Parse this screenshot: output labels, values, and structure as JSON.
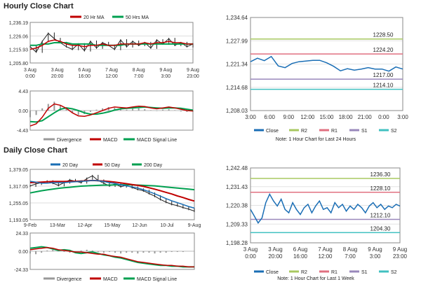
{
  "hourly": {
    "title": "Hourly Close Chart",
    "price_chart": {
      "type": "line",
      "legend": [
        "20 Hr MA",
        "50 Hrs MA"
      ],
      "y_ticks": [
        "1,236.19",
        "1,226.06",
        "1,215.93",
        "1,205.80"
      ],
      "ylim": [
        1205.8,
        1236.19
      ],
      "x_ticks": [
        [
          "3 Aug",
          "0:00"
        ],
        [
          "3 Aug",
          "20:00"
        ],
        [
          "6 Aug",
          "16:00"
        ],
        [
          "7 Aug",
          "12:00"
        ],
        [
          "8 Aug",
          "7:00"
        ],
        [
          "9 Aug",
          "3:00"
        ],
        [
          "9 Aug",
          "23:00"
        ]
      ],
      "close": [
        1218,
        1214,
        1222,
        1228,
        1224,
        1221,
        1218,
        1216,
        1220,
        1215,
        1222,
        1217,
        1221,
        1219,
        1216,
        1223,
        1218,
        1222,
        1219,
        1221,
        1217,
        1223,
        1220,
        1224,
        1219,
        1221,
        1218,
        1220
      ],
      "ma20": [
        1216,
        1217,
        1219,
        1222,
        1223,
        1222,
        1220,
        1219,
        1219,
        1218,
        1219,
        1219,
        1220,
        1219,
        1219,
        1220,
        1220,
        1220,
        1220,
        1221,
        1220,
        1221,
        1221,
        1222,
        1221,
        1221,
        1220,
        1220
      ],
      "ma50": [
        1219,
        1219,
        1220,
        1220,
        1221,
        1221,
        1221,
        1220,
        1220,
        1220,
        1220,
        1219,
        1219,
        1219,
        1219,
        1219,
        1220,
        1220,
        1220,
        1220,
        1220,
        1220,
        1220,
        1220,
        1220,
        1220,
        1220,
        1220
      ],
      "colors": {
        "ma20": "#c00000",
        "ma50": "#00a050",
        "price": "#222222"
      }
    },
    "macd_chart": {
      "type": "line",
      "y_ticks": [
        "4.43",
        "0.00",
        "-4.43"
      ],
      "ylim": [
        -4.43,
        4.43
      ],
      "legend": [
        "Divergence",
        "MACD",
        "MACD Signal Line"
      ],
      "divergence": [
        -1.5,
        -1.0,
        0.5,
        1.5,
        2.0,
        1.2,
        0.5,
        -0.5,
        -1.0,
        -0.8,
        -0.3,
        0.2,
        0.5,
        0.8,
        0.6,
        0.3,
        0.2,
        0.4,
        0.5,
        0.3,
        0.1,
        -0.1,
        0.2,
        0.3,
        0.1,
        -0.2,
        -0.3,
        -0.2
      ],
      "macd": [
        -3.5,
        -3.0,
        -1.5,
        0.5,
        1.5,
        1.2,
        0.5,
        -0.5,
        -1.2,
        -1.3,
        -1.0,
        -0.5,
        0.0,
        0.5,
        0.8,
        0.7,
        0.6,
        0.8,
        1.0,
        0.9,
        0.6,
        0.4,
        0.6,
        0.8,
        0.6,
        0.3,
        0.0,
        -0.1
      ],
      "signal": [
        -2.5,
        -2.6,
        -2.3,
        -1.4,
        -0.5,
        0.3,
        0.6,
        0.4,
        0.0,
        -0.5,
        -0.8,
        -0.8,
        -0.6,
        -0.3,
        0.1,
        0.4,
        0.5,
        0.6,
        0.7,
        0.8,
        0.7,
        0.6,
        0.5,
        0.6,
        0.6,
        0.5,
        0.3,
        0.1
      ],
      "colors": {
        "divergence": "#999999",
        "macd": "#c00000",
        "signal": "#00a050"
      }
    },
    "pivot_chart": {
      "type": "line",
      "y_ticks": [
        "1,234.64",
        "1,227.99",
        "1,221.34",
        "1,214.68",
        "1,208.03"
      ],
      "ylim": [
        1208.03,
        1234.64
      ],
      "x_ticks": [
        "3:00",
        "6:00",
        "9:00",
        "12:00",
        "15:00",
        "18:00",
        "21:00",
        "0:00",
        "3:00"
      ],
      "close": [
        1222.0,
        1223.0,
        1222.3,
        1223.5,
        1220.8,
        1220.3,
        1221.5,
        1222.0,
        1222.2,
        1222.4,
        1222.4,
        1221.7,
        1220.7,
        1219.4,
        1220.0,
        1219.6,
        1219.9,
        1220.3,
        1219.9,
        1219.9,
        1219.3,
        1220.5,
        1219.9
      ],
      "levels": [
        {
          "name": "R2",
          "value": 1228.5,
          "label": "1228.50",
          "color": "#a8c860"
        },
        {
          "name": "R1",
          "value": 1224.2,
          "label": "1224.20",
          "color": "#e07080"
        },
        {
          "name": "S1",
          "value": 1217.0,
          "label": "1217.00",
          "color": "#9988bb"
        },
        {
          "name": "S2",
          "value": 1214.1,
          "label": "1214.10",
          "color": "#40c0c0"
        }
      ],
      "legend": [
        "Close",
        "R2",
        "R1",
        "S1",
        "S2"
      ],
      "note": "Note: 1 Hour Chart for Last 24 Hours",
      "colors": {
        "close": "#1a6eb5"
      }
    }
  },
  "daily": {
    "title": "Daily Close Chart",
    "price_chart": {
      "type": "line",
      "legend": [
        "20 Day",
        "50 Day",
        "200 Day"
      ],
      "y_ticks": [
        "1,379.05",
        "1,317.05",
        "1,255.05",
        "1,193.05"
      ],
      "ylim": [
        1193.05,
        1379.05
      ],
      "x_ticks": [
        "9-Feb",
        "13-Mar",
        "12-Apr",
        "15-May",
        "12-Jun",
        "10-Jul",
        "9-Aug"
      ],
      "close": [
        1318,
        1325,
        1330,
        1335,
        1328,
        1320,
        1330,
        1340,
        1335,
        1330,
        1345,
        1355,
        1338,
        1328,
        1318,
        1325,
        1315,
        1320,
        1312,
        1305,
        1300,
        1290,
        1280,
        1268,
        1258,
        1250,
        1245,
        1238,
        1232,
        1225
      ],
      "ma20": [
        1335,
        1332,
        1328,
        1328,
        1330,
        1330,
        1330,
        1332,
        1333,
        1335,
        1336,
        1338,
        1337,
        1334,
        1330,
        1327,
        1322,
        1318,
        1314,
        1310,
        1304,
        1297,
        1289,
        1280,
        1271,
        1263,
        1256,
        1249,
        1242,
        1236
      ],
      "ma50": [
        1330,
        1331,
        1332,
        1333,
        1334,
        1334,
        1334,
        1335,
        1335,
        1336,
        1337,
        1338,
        1337,
        1336,
        1334,
        1332,
        1329,
        1326,
        1323,
        1320,
        1316,
        1311,
        1306,
        1300,
        1294,
        1288,
        1281,
        1275,
        1268,
        1262
      ],
      "ma200": [
        1292,
        1296,
        1300,
        1303,
        1306,
        1309,
        1311,
        1313,
        1315,
        1317,
        1318,
        1319,
        1320,
        1321,
        1321,
        1322,
        1322,
        1322,
        1322,
        1321,
        1320,
        1319,
        1318,
        1316,
        1314,
        1312,
        1310,
        1308,
        1306,
        1304
      ],
      "colors": {
        "ma20": "#1a6eb5",
        "ma50": "#c00000",
        "ma200": "#00a050",
        "price": "#222222"
      }
    },
    "macd_chart": {
      "type": "line",
      "y_ticks": [
        "24.33",
        "0.00",
        "-24.33"
      ],
      "ylim": [
        -24.33,
        24.33
      ],
      "legend": [
        "Divergence",
        "MACD",
        "MACD Signal Line"
      ],
      "divergence": [
        -3,
        -4,
        -2,
        1,
        2,
        1,
        -1,
        -2,
        -1,
        1,
        2,
        1,
        -1,
        -2,
        -1,
        -2,
        -3,
        -2,
        -2,
        -3,
        -2,
        -2,
        -3,
        -2,
        -2,
        -1,
        -1,
        -1,
        0,
        0
      ],
      "macd": [
        2,
        3,
        4,
        5,
        4,
        2,
        1,
        0,
        -1,
        -1,
        -2,
        -3,
        -4,
        -4,
        -6,
        -7,
        -8,
        -10,
        -12,
        -14,
        -15,
        -16,
        -17,
        -18,
        -19,
        -19,
        -20,
        -20,
        -21,
        -21
      ],
      "signal": [
        4,
        5,
        6,
        5,
        3,
        1,
        2,
        1,
        -2,
        -3,
        -2,
        -1,
        -3,
        -5,
        -6,
        -8,
        -9,
        -11,
        -13,
        -15,
        -16,
        -17,
        -18,
        -19,
        -19,
        -20,
        -20,
        -21,
        -21,
        -21
      ],
      "colors": {
        "divergence": "#999999",
        "macd": "#c00000",
        "signal": "#00a050"
      }
    },
    "pivot_chart": {
      "type": "line",
      "y_ticks": [
        "1,242.48",
        "1,231.43",
        "1,220.38",
        "1,209.33",
        "1,198.28"
      ],
      "ylim": [
        1198.28,
        1242.48
      ],
      "x_ticks": [
        [
          "3 Aug",
          "0:00"
        ],
        [
          "3 Aug",
          "20:00"
        ],
        [
          "6 Aug",
          "16:00"
        ],
        [
          "7 Aug",
          "12:00"
        ],
        [
          "8 Aug",
          "7:00"
        ],
        [
          "9 Aug",
          "3:00"
        ],
        [
          "9 Aug",
          "23:00"
        ]
      ],
      "close": [
        1218,
        1214,
        1210,
        1213,
        1222,
        1227,
        1223,
        1220,
        1224,
        1218,
        1216,
        1222,
        1218,
        1215,
        1219,
        1221,
        1216,
        1220,
        1223,
        1218,
        1219,
        1216,
        1222,
        1219,
        1221,
        1217,
        1220,
        1218,
        1221,
        1219,
        1216,
        1220,
        1222,
        1219,
        1221,
        1218,
        1220,
        1219,
        1221,
        1220
      ],
      "levels": [
        {
          "name": "R2",
          "value": 1236.3,
          "label": "1236.30",
          "color": "#a8c860"
        },
        {
          "name": "R1",
          "value": 1228.1,
          "label": "1228.10",
          "color": "#e07080"
        },
        {
          "name": "S1",
          "value": 1212.1,
          "label": "1212.10",
          "color": "#9988bb"
        },
        {
          "name": "S2",
          "value": 1204.3,
          "label": "1204.30",
          "color": "#40c0c0"
        }
      ],
      "legend": [
        "Close",
        "R2",
        "R1",
        "S1",
        "S2"
      ],
      "note": "Note: 1 Hour Chart for Last 1 Week",
      "colors": {
        "close": "#1a6eb5"
      }
    }
  }
}
